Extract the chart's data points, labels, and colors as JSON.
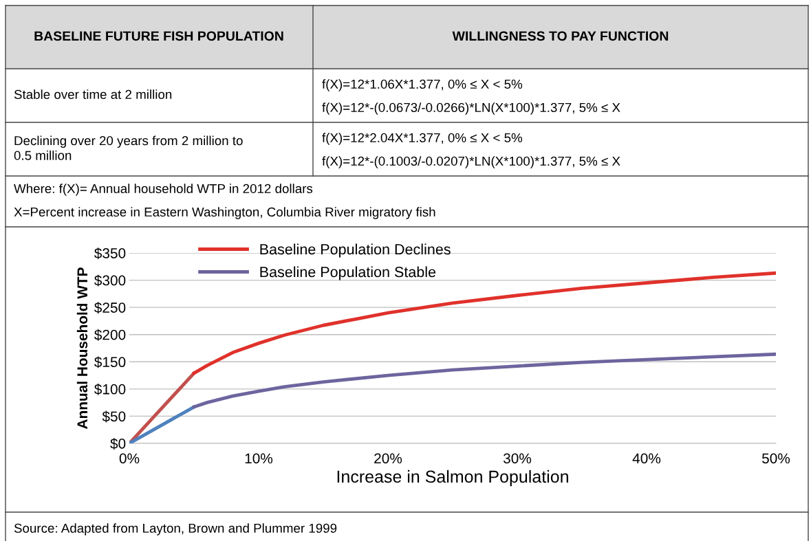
{
  "chart_data": {
    "type": "line",
    "xlabel": "Increase in Salmon Population",
    "ylabel": "Annual Household WTP",
    "series": [
      {
        "color": "#c0504d",
        "x": [
          0,
          5
        ],
        "values": [
          0,
          129
        ]
      },
      {
        "color": "#4f81bd",
        "x": [
          0,
          5
        ],
        "values": [
          0,
          67
        ]
      },
      {
        "name": "Baseline Population Declines",
        "color": "#e0312b",
        "x": [
          5,
          6,
          8,
          10,
          12,
          15,
          20,
          25,
          30,
          35,
          40,
          45,
          50
        ],
        "values": [
          129,
          143,
          167,
          184,
          199,
          217,
          240,
          258,
          272,
          285,
          295,
          305,
          313
        ]
      },
      {
        "name": "Baseline Population Stable",
        "color": "#6c659e",
        "x": [
          5,
          6,
          8,
          10,
          12,
          15,
          20,
          25,
          30,
          35,
          40,
          45,
          50
        ],
        "values": [
          67,
          75,
          87,
          96,
          104,
          113,
          125,
          135,
          142,
          149,
          154,
          159,
          164
        ]
      }
    ],
    "xlim": [
      0,
      50
    ],
    "xticks": [
      {
        "value": 0,
        "label": "0%"
      },
      {
        "value": 10,
        "label": "10%"
      },
      {
        "value": 20,
        "label": "20%"
      },
      {
        "value": 30,
        "label": "30%"
      },
      {
        "value": 40,
        "label": "40%"
      },
      {
        "value": 50,
        "label": "50%"
      }
    ],
    "ylim": [
      0,
      350
    ],
    "yticks": [
      {
        "value": 0,
        "label": "$0"
      },
      {
        "value": 50,
        "label": "$50"
      },
      {
        "value": 100,
        "label": "$100"
      },
      {
        "value": 150,
        "label": "$150"
      },
      {
        "value": 200,
        "label": "$200"
      },
      {
        "value": 250,
        "label": "$250"
      },
      {
        "value": 300,
        "label": "$300"
      },
      {
        "value": 350,
        "label": "$350"
      }
    ],
    "grid": "y",
    "legend": "top left",
    "marker": "none",
    "line_style": "solid",
    "annotations": [
      "BASELINE FUTURE FISH POPULATION",
      "WILLINGNESS TO PAY FUNCTION",
      "Stable over time at 2 million",
      "f(X)=12*1.06X*1.377, 0% ≤ X < 5%",
      "f(X)=12*-(0.0673/-0.0266)*LN(X*100)*1.377, 5% ≤ X",
      "Declining over 20 years from 2 million to\n0.5 million",
      "f(X)=12*2.04X*1.377, 0% ≤ X < 5%",
      "f(X)=12*-(0.1003/-0.0207)*LN(X*100)*1.377, 5% ≤ X",
      "Where: f(X)= Annual household WTP in 2012 dollars",
      "X=Percent increase in Eastern Washington, Columbia River migratory fish",
      "Source: Adapted from Layton, Brown and Plummer 1999"
    ]
  }
}
